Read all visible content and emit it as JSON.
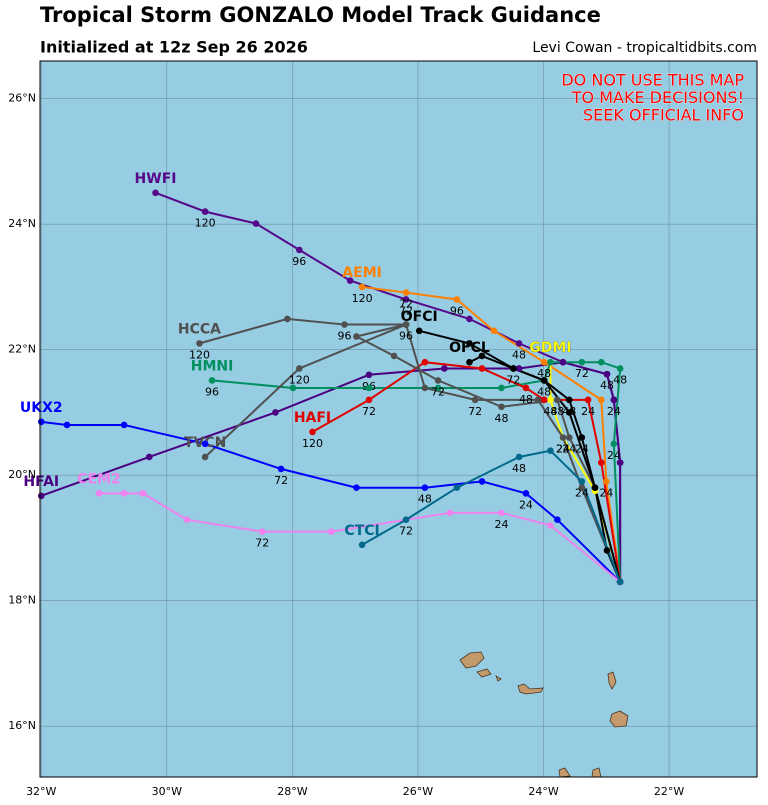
{
  "chart_data": {
    "type": "track-map",
    "title": "Tropical Storm GONZALO Model Track Guidance",
    "subtitle": "Initialized at 12z Sep 26 2026",
    "credit": "Levi Cowan - tropicaltidbits.com",
    "annotation": [
      "DO NOT USE THIS MAP",
      "TO MAKE DECISIONS!",
      "SEEK OFFICIAL INFO"
    ],
    "xlim": [
      -32.02,
      -20.6
    ],
    "ylim": [
      15.19,
      26.6
    ],
    "xticks": [
      {
        "value": -32,
        "label": "32°W"
      },
      {
        "value": -30,
        "label": "30°W"
      },
      {
        "value": -28,
        "label": "28°W"
      },
      {
        "value": -26,
        "label": "26°W"
      },
      {
        "value": -24,
        "label": "24°W"
      },
      {
        "value": -22,
        "label": "22°W"
      }
    ],
    "yticks": [
      {
        "value": 16,
        "label": "16°N"
      },
      {
        "value": 18,
        "label": "18°N"
      },
      {
        "value": 20,
        "label": "20°N"
      },
      {
        "value": 22,
        "label": "22°N"
      },
      {
        "value": 24,
        "label": "24°N"
      },
      {
        "value": 26,
        "label": "26°N"
      }
    ],
    "grid": true,
    "series": [
      {
        "name": "HWFI",
        "color": "#55088a",
        "x": [
          -22.78,
          -22.78,
          -22.88,
          -22.99,
          -23.69,
          -24.39,
          -25.18,
          -26.19,
          -27.08,
          -27.89,
          -28.58,
          -29.39,
          -30.18
        ],
        "values": [
          18.3,
          20.2,
          21.2,
          21.61,
          21.8,
          22.1,
          22.49,
          22.8,
          23.1,
          23.59,
          24.01,
          24.2,
          24.5
        ],
        "point_labels": [
          null,
          null,
          24,
          null,
          null,
          48,
          null,
          72,
          null,
          96,
          null,
          120,
          null
        ]
      },
      {
        "name": "HFAI",
        "color": "#4b0082",
        "x": [
          -22.78,
          -22.78,
          -22.88,
          -22.99,
          -23.69,
          -24.39,
          -25.58,
          -26.78,
          -28.27,
          -30.28,
          -32.0
        ],
        "values": [
          18.3,
          20.2,
          21.2,
          21.61,
          21.8,
          21.7,
          21.7,
          21.6,
          21.0,
          20.29,
          19.67
        ],
        "point_labels": [
          null,
          null,
          null,
          48,
          null,
          null,
          null,
          96,
          null,
          null,
          null
        ]
      },
      {
        "name": "AEMI",
        "color": "#ff7f00",
        "x": [
          -22.78,
          -23.0,
          -23.08,
          -23.99,
          -24.79,
          -25.38,
          -26.19,
          -26.89
        ],
        "values": [
          18.3,
          19.9,
          21.2,
          21.8,
          22.3,
          22.8,
          22.91,
          23.0
        ],
        "point_labels": [
          null,
          24,
          null,
          48,
          null,
          96,
          72,
          120
        ]
      },
      {
        "name": "GDMI",
        "color": "#ffff00",
        "x": [
          -22.78,
          -23.18,
          -23.69,
          -23.89,
          -23.89
        ],
        "values": [
          18.3,
          19.75,
          20.6,
          21.2,
          21.8
        ],
        "point_labels": [
          null,
          null,
          24,
          48,
          null
        ]
      },
      {
        "name": "HMNI",
        "color": "#009060",
        "x": [
          -22.78,
          -22.88,
          -22.78,
          -23.08,
          -23.39,
          -23.89,
          -23.99,
          -24.67,
          -25.68,
          -26.78,
          -27.99,
          -29.28
        ],
        "values": [
          18.3,
          20.5,
          21.7,
          21.8,
          21.8,
          21.8,
          21.51,
          21.39,
          21.39,
          21.39,
          21.39,
          21.51
        ],
        "point_labels": [
          null,
          24,
          48,
          null,
          72,
          null,
          null,
          null,
          null,
          null,
          null,
          96
        ]
      },
      {
        "name": "HAFI",
        "color": "#e00000",
        "x": [
          -22.78,
          -23.08,
          -23.29,
          -23.99,
          -24.28,
          -24.98,
          -25.89,
          -26.78,
          -27.68
        ],
        "values": [
          18.3,
          20.2,
          21.2,
          21.2,
          21.39,
          21.7,
          21.8,
          21.2,
          20.69
        ],
        "point_labels": [
          null,
          null,
          24,
          null,
          48,
          null,
          null,
          72,
          120
        ]
      },
      {
        "name": "HCCA",
        "color": "#505050",
        "x": [
          -22.78,
          -23.18,
          -23.59,
          -23.78,
          -24.67,
          -25.68,
          -26.38,
          -26.98,
          -26.19,
          -27.17,
          -28.08,
          -29.48
        ],
        "values": [
          18.3,
          19.8,
          20.6,
          21.2,
          21.09,
          21.51,
          21.9,
          22.21,
          22.4,
          22.4,
          22.49,
          22.1
        ],
        "point_labels": [
          null,
          null,
          24,
          48,
          48,
          72,
          null,
          null,
          96,
          96,
          null,
          120
        ]
      },
      {
        "name": "TVCN",
        "color": "#505050",
        "x": [
          -22.78,
          -23.39,
          -23.69,
          -24.09,
          -25.09,
          -25.89,
          -26.19,
          -27.89,
          -29.39
        ],
        "values": [
          18.3,
          19.8,
          20.6,
          21.2,
          21.2,
          21.39,
          22.4,
          21.7,
          20.29
        ],
        "point_labels": [
          null,
          null,
          24,
          null,
          72,
          null,
          null,
          120,
          null
        ]
      },
      {
        "name": "OFCI",
        "color": "#000000",
        "x": [
          -22.78,
          -23.18,
          -23.59,
          -23.99,
          -24.48,
          -25.18,
          -25.98
        ],
        "values": [
          18.3,
          19.8,
          21.0,
          21.51,
          21.7,
          22.1,
          22.3
        ],
        "point_labels": [
          null,
          null,
          null,
          48,
          null,
          null,
          null
        ]
      },
      {
        "name": "OFCL",
        "color": "#000000",
        "x": [
          -22.78,
          -22.99,
          -23.18,
          -23.39,
          -23.59,
          -23.99,
          -24.48,
          -24.98,
          -25.18
        ],
        "values": [
          18.3,
          18.8,
          19.8,
          20.6,
          21.2,
          21.51,
          21.7,
          21.9,
          21.8
        ],
        "point_labels": [
          null,
          null,
          null,
          24,
          48,
          null,
          72,
          null,
          null
        ]
      },
      {
        "name": "UKX2",
        "color": "#0000ff",
        "x": [
          -22.78,
          -23.78,
          -24.28,
          -24.98,
          -25.89,
          -26.98,
          -28.18,
          -29.39,
          -30.68,
          -31.59,
          -32.0
        ],
        "values": [
          18.3,
          19.29,
          19.71,
          19.9,
          19.8,
          19.8,
          20.1,
          20.5,
          20.8,
          20.8,
          20.85
        ],
        "point_labels": [
          null,
          null,
          24,
          null,
          48,
          null,
          72,
          null,
          null,
          null,
          null
        ]
      },
      {
        "name": "CEM2",
        "color": "#ee82ee",
        "x": [
          -22.78,
          -23.89,
          -24.67,
          -25.49,
          -27.38,
          -28.48,
          -29.68,
          -30.38,
          -30.68,
          -31.08
        ],
        "values": [
          18.3,
          19.2,
          19.4,
          19.4,
          19.1,
          19.1,
          19.29,
          19.71,
          19.71,
          19.71
        ],
        "point_labels": [
          null,
          null,
          24,
          null,
          null,
          72,
          null,
          null,
          null,
          null
        ]
      },
      {
        "name": "CTCI",
        "color": "#00688b",
        "x": [
          -22.78,
          -23.39,
          -23.89,
          -24.39,
          -25.38,
          -26.19,
          -26.89
        ],
        "values": [
          18.3,
          19.9,
          20.39,
          20.29,
          19.8,
          19.29,
          18.89
        ],
        "point_labels": [
          null,
          24,
          null,
          48,
          null,
          72,
          null
        ]
      }
    ]
  }
}
